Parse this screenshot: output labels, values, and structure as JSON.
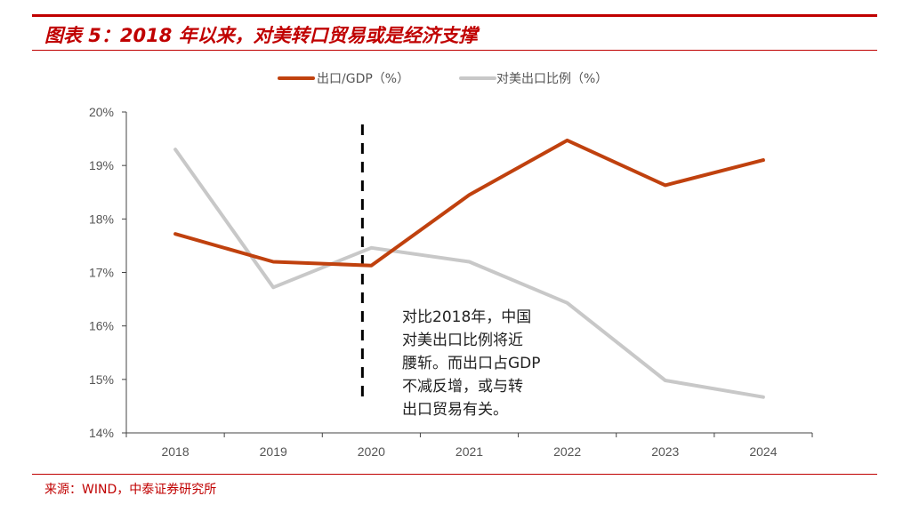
{
  "header": {
    "title": "图表 5：2018 年以来，对美转口贸易或是经济支撑"
  },
  "footer": {
    "source": "来源：WIND，中泰证券研究所"
  },
  "annotation": {
    "lines": [
      "对比2018年，中国",
      "对美出口比例将近",
      "腰斩。而出口占GDP",
      "不减反增，或与转",
      "出口贸易有关。"
    ]
  },
  "chart_data": {
    "type": "line",
    "x": [
      "2018",
      "2019",
      "2020",
      "2021",
      "2022",
      "2023",
      "2024"
    ],
    "ylim": [
      14,
      20
    ],
    "yticks": [
      "14%",
      "15%",
      "16%",
      "17%",
      "18%",
      "19%",
      "20%"
    ],
    "reference_line_x": "2020",
    "legend_position": "top",
    "series": [
      {
        "name": "出口/GDP（%）",
        "color": "#c0410e",
        "values": [
          17.72,
          17.2,
          17.13,
          18.45,
          19.47,
          18.63,
          19.1
        ]
      },
      {
        "name": "对美出口比例（%）",
        "color": "#c8c8c8",
        "values": [
          19.3,
          16.72,
          17.46,
          17.2,
          16.43,
          14.98,
          14.67
        ]
      }
    ]
  }
}
